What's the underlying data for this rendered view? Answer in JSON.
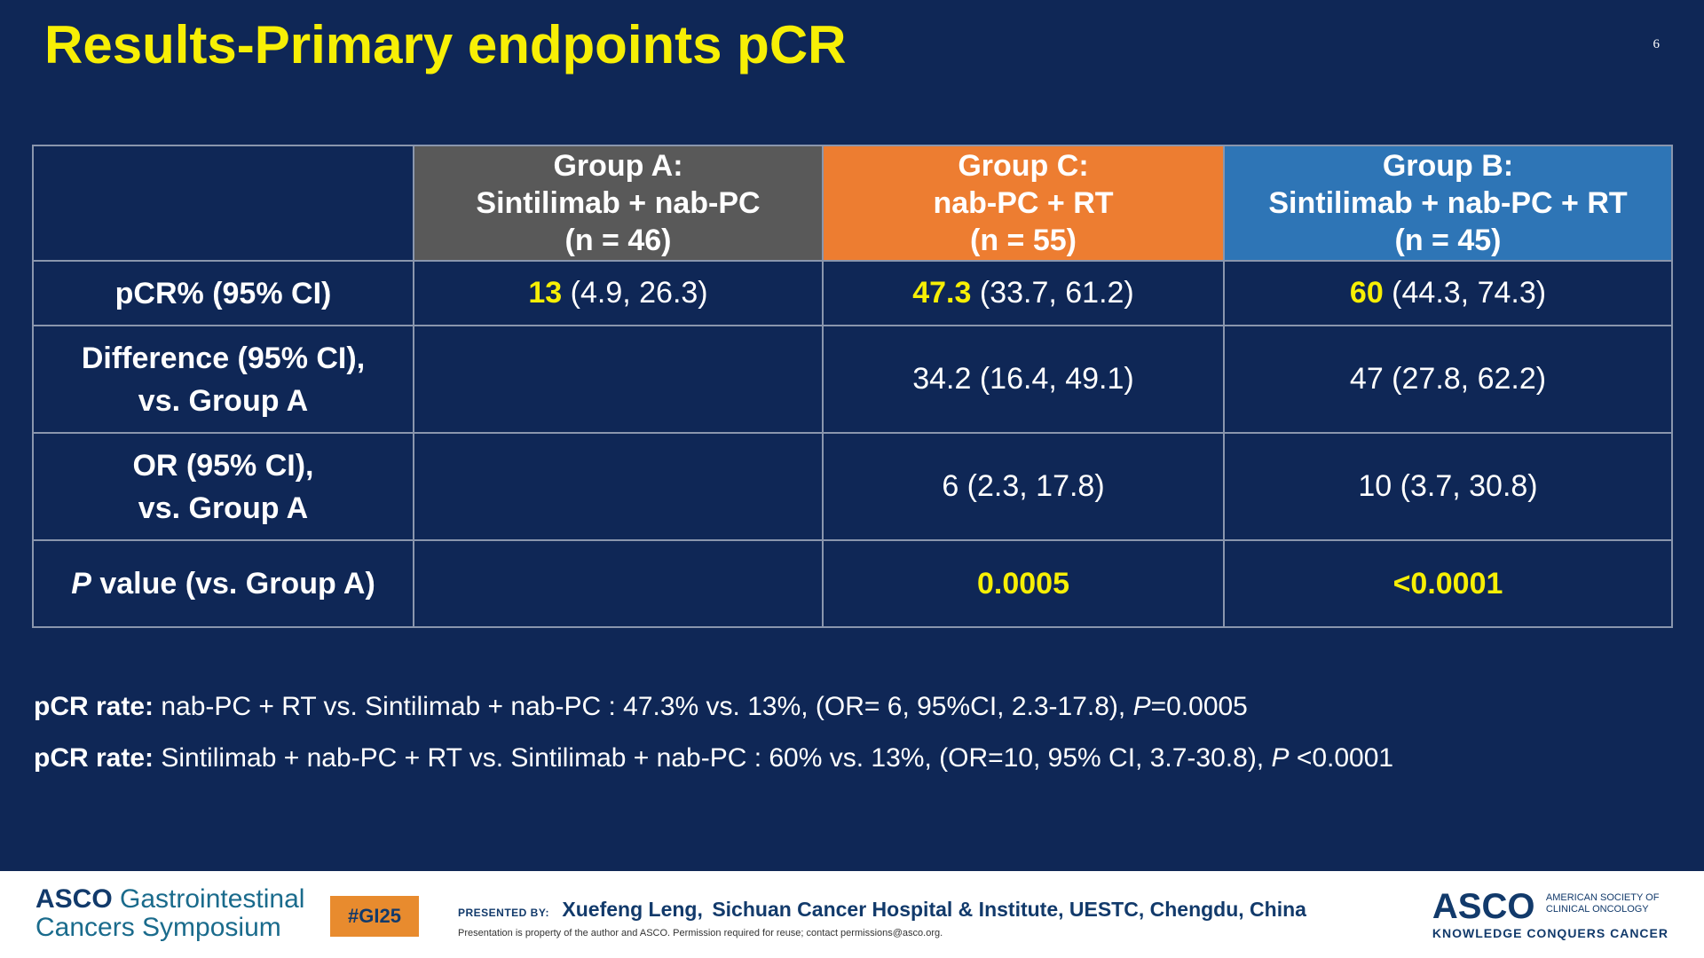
{
  "slide": {
    "title": "Results-Primary endpoints pCR",
    "page_number": "6"
  },
  "table": {
    "headers": [
      {
        "line1": "Group A:",
        "line2": "Sintilimab + nab-PC",
        "line3": "(n = 46)"
      },
      {
        "line1": "Group C:",
        "line2": "nab-PC + RT",
        "line3": "(n = 55)"
      },
      {
        "line1": "Group B:",
        "line2": "Sintilimab + nab-PC + RT",
        "line3": "(n = 45)"
      }
    ],
    "rows": {
      "pcr": {
        "label": "pCR% (95% CI)",
        "a": {
          "value": "13",
          "ci": " (4.9, 26.3)"
        },
        "c": {
          "value": "47.3",
          "ci": " (33.7, 61.2)"
        },
        "b": {
          "value": "60",
          "ci": " (44.3, 74.3)"
        }
      },
      "difference": {
        "label1": "Difference (95% CI),",
        "label2": "vs. Group A",
        "a": "",
        "c": "34.2 (16.4, 49.1)",
        "b": "47 (27.8, 62.2)"
      },
      "or": {
        "label1": "OR (95% CI),",
        "label2": "vs. Group A",
        "a": "",
        "c": "6 (2.3, 17.8)",
        "b": "10 (3.7, 30.8)"
      },
      "pvalue": {
        "label_italic": "P",
        "label_rest": " value (vs. Group A)",
        "a": "",
        "c": "0.0005",
        "b": "<0.0001"
      }
    }
  },
  "notes": [
    {
      "bold": "pCR rate:",
      "text": " nab-PC + RT vs. Sintilimab + nab-PC :  47.3% vs. 13%, (OR= 6, 95%CI, 2.3-17.8), ",
      "p_italic": "P",
      "p_rest": "=0.0005"
    },
    {
      "bold": "pCR rate:",
      "text": " Sintilimab + nab-PC + RT vs. Sintilimab + nab-PC :  60% vs. 13%, (OR=10, 95% CI, 3.7-30.8), ",
      "p_italic": "P",
      "p_rest": " <0.0001"
    }
  ],
  "footer": {
    "gi_brand": "ASCO",
    "gi_line1_rest": " Gastrointestinal",
    "gi_line2": "Cancers Symposium",
    "hashtag": "#GI25",
    "presented_by_label": "PRESENTED BY:",
    "presenter_name": "Xuefeng Leng,",
    "affiliation": "Sichuan Cancer Hospital & Institute, UESTC, Chengdu, China",
    "disclaimer": "Presentation is property of the author and ASCO. Permission required for reuse; contact permissions@asco.org.",
    "asco_logo": "ASCO",
    "asco_society_line1": "AMERICAN SOCIETY OF",
    "asco_society_line2": "CLINICAL ONCOLOGY",
    "asco_tagline": "KNOWLEDGE CONQUERS CANCER"
  },
  "colors": {
    "background": "#0f2756",
    "accent_yellow": "#f7ef05",
    "group_a": "#595959",
    "group_c": "#ed7d31",
    "group_b": "#2e75b6"
  }
}
